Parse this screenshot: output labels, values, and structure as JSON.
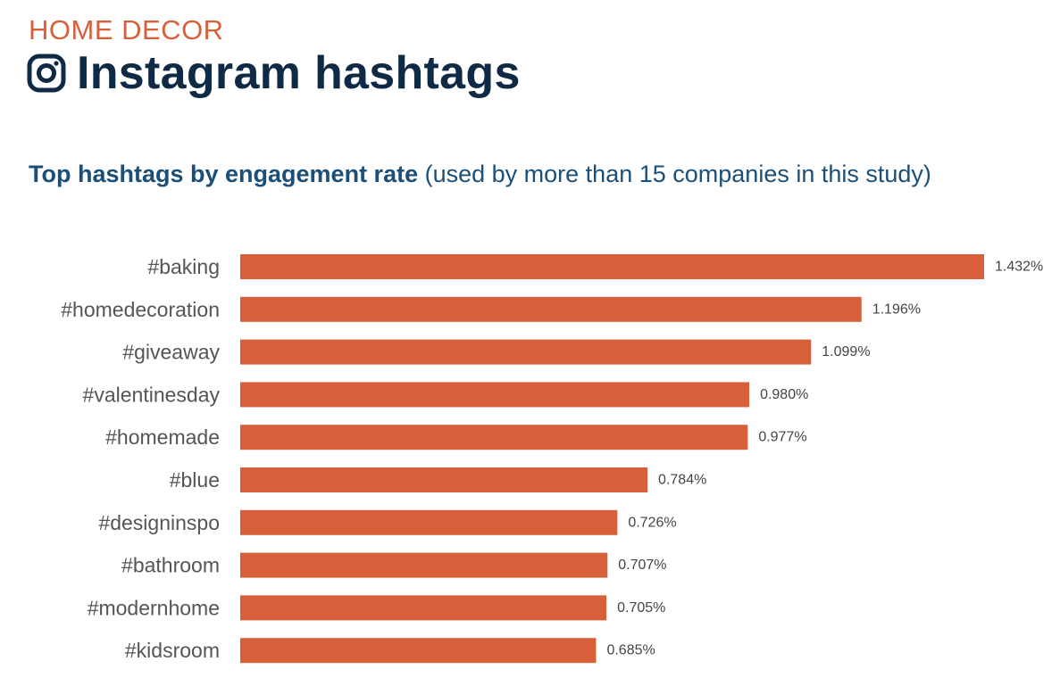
{
  "header": {
    "kicker": "HOME DECOR",
    "title": "Instagram hashtags",
    "icon": "instagram-icon"
  },
  "subtitle": {
    "bold": "Top hashtags by engagement rate",
    "rest": "(used by more than 15 companies in this study)"
  },
  "colors": {
    "bar": "#d7603a",
    "kicker": "#d7603a",
    "title": "#0f2a44",
    "subtitle": "#1a4f7a"
  },
  "chart_data": {
    "type": "bar",
    "orientation": "horizontal",
    "title": "Top hashtags by engagement rate (used by more than 15 companies in this study)",
    "xlabel": "",
    "ylabel": "",
    "categories": [
      "#baking",
      "#homedecoration",
      "#giveaway",
      "#valentinesday",
      "#homemade",
      "#blue",
      "#designinspo",
      "#bathroom",
      "#modernhome",
      "#kidsroom"
    ],
    "values": [
      1.432,
      1.196,
      1.099,
      0.98,
      0.977,
      0.784,
      0.726,
      0.707,
      0.705,
      0.685
    ],
    "value_labels": [
      "1.432%",
      "1.196%",
      "1.099%",
      "0.980%",
      "0.977%",
      "0.784%",
      "0.726%",
      "0.707%",
      "0.705%",
      "0.685%"
    ],
    "unit": "%",
    "xlim": [
      0,
      1.432
    ],
    "grid": false,
    "legend": "none"
  }
}
